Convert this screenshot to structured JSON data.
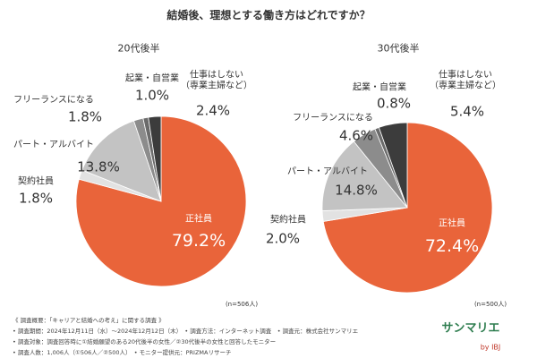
{
  "title": "結婚後、理想とする働き方はどれですか？",
  "chart_data": [
    {
      "type": "pie",
      "title": "20代後半",
      "note": "(n=506人)",
      "categories": [
        "正社員",
        "契約社員",
        "パート・アルバイト",
        "フリーランスになる",
        "起業・自営業",
        "仕事はしない\n（専業主婦など）"
      ],
      "values": [
        79.2,
        1.8,
        13.8,
        1.8,
        1.0,
        2.4
      ],
      "value_labels": [
        "79.2%",
        "1.8%",
        "13.8%",
        "1.8%",
        "1.0%",
        "2.4%"
      ],
      "colors": [
        "#e9643a",
        "#e2e2e2",
        "#c3c3c3",
        "#8c8c8c",
        "#6b6b6b",
        "#3c3c3c"
      ]
    },
    {
      "type": "pie",
      "title": "30代後半",
      "note": "(n=500人)",
      "categories": [
        "正社員",
        "契約社員",
        "パート・アルバイト",
        "フリーランスになる",
        "起業・自営業",
        "仕事はしない\n（専業主婦など）"
      ],
      "values": [
        72.4,
        2.0,
        14.8,
        4.6,
        0.8,
        5.4
      ],
      "value_labels": [
        "72.4%",
        "2.0%",
        "14.8%",
        "4.6%",
        "0.8%",
        "5.4%"
      ],
      "colors": [
        "#e9643a",
        "#e2e2e2",
        "#c3c3c3",
        "#8c8c8c",
        "#6b6b6b",
        "#3c3c3c"
      ]
    }
  ],
  "notes": [
    "《 調査概要：「キャリアと結婚への考え」に関する調査 》",
    "• 調査期間：2024年12月11日（水）～2024年12月12日（木）　• 調査方法：インターネット調査　• 調査元：株式会社サンマリエ",
    "• 調査対象：調査回答時に①結婚願望のある20代後半の女性／②30代後半の女性と回答したモニター",
    "• 調査人数：1,006人（①506人／②500人）　• モニター提供元：PRIZMAリサーチ"
  ],
  "logo": {
    "name": "サンマリエ",
    "by": "by IBJ"
  }
}
